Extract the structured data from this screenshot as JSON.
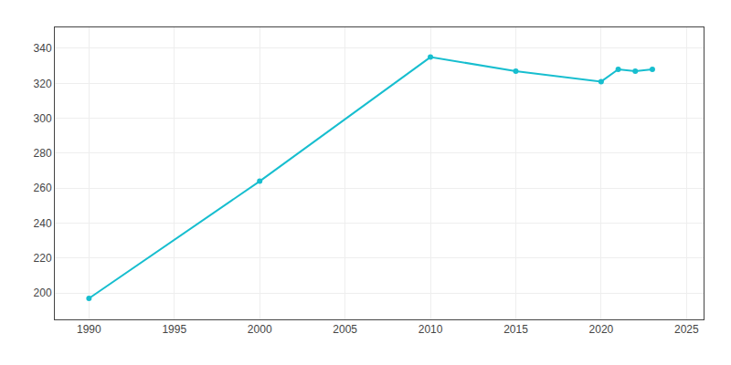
{
  "chart_data": {
    "type": "line",
    "x": [
      1990,
      2000,
      2010,
      2015,
      2020,
      2021,
      2022,
      2023
    ],
    "values": [
      197,
      264,
      335,
      327,
      321,
      328,
      327,
      328
    ],
    "color": "#17becf",
    "marker": "circle",
    "xlim": [
      1988,
      2026
    ],
    "xticks": [
      1990,
      1995,
      2000,
      2005,
      2010,
      2015,
      2020,
      2025
    ],
    "ylim": [
      185,
      352
    ],
    "yticks": [
      200,
      220,
      240,
      260,
      280,
      300,
      320,
      340
    ],
    "grid": true
  }
}
